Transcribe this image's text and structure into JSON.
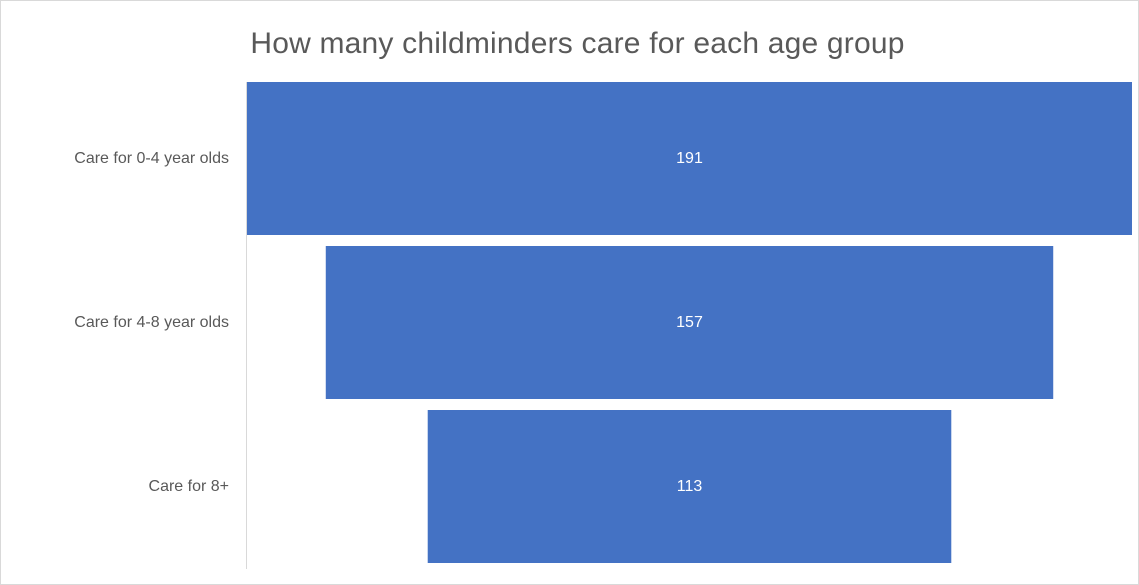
{
  "chart_data": {
    "type": "bar",
    "subtype": "funnel",
    "orientation": "horizontal",
    "title": "How many childminders care for each age group",
    "categories": [
      "Care for 0-4 year olds",
      "Care for 4-8 year olds",
      "Care for 8+"
    ],
    "values": [
      191,
      157,
      113
    ],
    "value_labels": [
      "191",
      "157",
      "113"
    ],
    "xlabel": "",
    "ylabel": "",
    "grid": false,
    "legend": "none",
    "bar_color": "#4472c4",
    "label_color": "#ffffff"
  }
}
